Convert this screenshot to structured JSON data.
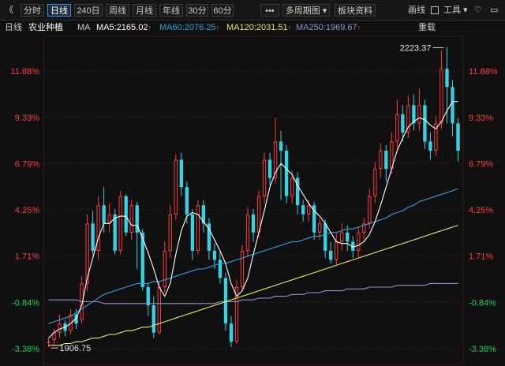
{
  "toolbar": {
    "back_glyph": "《",
    "periods": [
      "分时",
      "日线",
      "240日",
      "周线",
      "月线",
      "年线",
      "30分",
      "60分"
    ],
    "active_period": "日线",
    "more_glyph": "•••",
    "multi_period": "多周期图",
    "sector": "板块资料",
    "draw_line": "画线",
    "tools": "工具",
    "heart_icon": "heart-icon",
    "window_icon": "window-icon"
  },
  "legend": {
    "period": "日线",
    "name": "农业种植",
    "ma_label": "MA",
    "ma5": "MA5:2165.02",
    "ma60": "MA60:2076.25",
    "ma120": "MA120:2031.51",
    "ma250": "MA250:1969.67",
    "reset": "重载",
    "colors": {
      "ma5": "#ffffff",
      "ma60": "#2fa2e0",
      "ma120": "#e8e86a",
      "ma250": "#8c94c8"
    }
  },
  "chart_data": {
    "type": "candlestick",
    "y_ticks": [
      "11.88%",
      "9.33%",
      "6.79%",
      "4.25%",
      "1.71%",
      "-0.84%",
      "-3.38%"
    ],
    "ylim": [
      -3.38,
      11.88
    ],
    "annotations": [
      {
        "text": "2223.37",
        "kind": "high"
      },
      {
        "text": "1906.75",
        "kind": "low"
      }
    ],
    "candles": [
      [
        -3.0,
        -3.0,
        -3.3,
        -2.8
      ],
      [
        -2.9,
        -2.5,
        -3.2,
        -2.3
      ],
      [
        -2.5,
        -2.0,
        -2.8,
        -1.5
      ],
      [
        -2.0,
        -2.4,
        -2.7,
        -1.8
      ],
      [
        -2.4,
        -1.5,
        -2.6,
        -1.2
      ],
      [
        -1.5,
        -2.0,
        -2.3,
        -1.2
      ],
      [
        -1.8,
        0.2,
        -2.0,
        0.6
      ],
      [
        0.2,
        3.5,
        -0.2,
        4.0
      ],
      [
        3.5,
        2.0,
        1.8,
        4.2
      ],
      [
        2.0,
        4.5,
        1.5,
        5.0
      ],
      [
        4.5,
        3.5,
        3.0,
        5.5
      ],
      [
        3.5,
        4.0,
        3.0,
        4.6
      ],
      [
        4.0,
        2.0,
        1.8,
        4.3
      ],
      [
        2.0,
        5.0,
        1.8,
        5.3
      ],
      [
        5.0,
        3.0,
        2.8,
        5.1
      ],
      [
        3.0,
        4.5,
        2.6,
        4.8
      ],
      [
        4.5,
        3.0,
        1.0,
        4.7
      ],
      [
        3.0,
        0.0,
        -0.2,
        3.2
      ],
      [
        0.0,
        -1.0,
        -1.6,
        0.2
      ],
      [
        -1.0,
        -2.5,
        -2.8,
        -0.5
      ],
      [
        -2.5,
        0.0,
        -2.6,
        0.3
      ],
      [
        0.0,
        2.0,
        -0.3,
        2.5
      ],
      [
        2.0,
        4.0,
        1.6,
        4.5
      ],
      [
        4.0,
        7.0,
        3.7,
        7.3
      ],
      [
        7.0,
        5.5,
        5.0,
        7.4
      ],
      [
        5.5,
        4.0,
        3.5,
        5.8
      ],
      [
        4.0,
        2.0,
        1.5,
        4.3
      ],
      [
        2.0,
        4.5,
        1.8,
        4.8
      ],
      [
        4.5,
        3.5,
        3.0,
        4.8
      ],
      [
        3.5,
        2.0,
        1.5,
        3.8
      ],
      [
        2.0,
        1.5,
        1.0,
        2.4
      ],
      [
        1.5,
        0.5,
        0.2,
        2.0
      ],
      [
        0.5,
        -2.0,
        -2.4,
        0.8
      ],
      [
        -2.0,
        -3.0,
        -3.3,
        -1.6
      ],
      [
        -3.0,
        0.0,
        -3.1,
        0.4
      ],
      [
        0.0,
        2.0,
        -0.2,
        2.3
      ],
      [
        2.0,
        4.0,
        1.7,
        4.4
      ],
      [
        4.0,
        3.0,
        2.5,
        4.3
      ],
      [
        3.0,
        5.0,
        2.7,
        5.3
      ],
      [
        5.0,
        7.0,
        4.6,
        7.4
      ],
      [
        7.0,
        6.0,
        5.6,
        7.4
      ],
      [
        6.0,
        8.0,
        5.7,
        9.3
      ],
      [
        8.0,
        7.5,
        4.8,
        8.6
      ],
      [
        7.5,
        5.0,
        4.6,
        7.8
      ],
      [
        5.0,
        6.0,
        4.6,
        6.4
      ],
      [
        6.0,
        4.5,
        4.0,
        6.3
      ],
      [
        4.5,
        4.0,
        3.6,
        4.8
      ],
      [
        4.0,
        4.5,
        3.6,
        4.8
      ],
      [
        4.5,
        3.0,
        2.6,
        4.7
      ],
      [
        3.0,
        3.5,
        2.6,
        3.8
      ],
      [
        3.5,
        2.0,
        1.6,
        3.7
      ],
      [
        2.0,
        1.5,
        1.3,
        2.5
      ],
      [
        1.5,
        2.5,
        1.2,
        3.0
      ],
      [
        2.5,
        3.0,
        2.0,
        3.5
      ],
      [
        3.0,
        2.5,
        2.0,
        3.4
      ],
      [
        2.5,
        2.0,
        1.6,
        2.8
      ],
      [
        2.0,
        3.0,
        1.6,
        3.3
      ],
      [
        3.0,
        3.5,
        2.5,
        3.8
      ],
      [
        3.5,
        5.0,
        3.2,
        5.4
      ],
      [
        5.0,
        6.5,
        4.6,
        6.9
      ],
      [
        6.5,
        7.5,
        6.0,
        7.9
      ],
      [
        7.5,
        6.5,
        5.8,
        7.8
      ],
      [
        6.5,
        8.0,
        6.2,
        8.5
      ],
      [
        8.0,
        9.5,
        7.6,
        10.3
      ],
      [
        9.5,
        8.5,
        8.0,
        10.0
      ],
      [
        8.5,
        10.0,
        8.2,
        10.5
      ],
      [
        10.0,
        9.0,
        8.6,
        10.6
      ],
      [
        9.0,
        10.0,
        8.6,
        10.9
      ],
      [
        10.0,
        8.0,
        7.6,
        10.3
      ],
      [
        8.0,
        7.5,
        7.0,
        8.5
      ],
      [
        7.5,
        9.0,
        7.2,
        9.4
      ],
      [
        9.0,
        12.0,
        8.7,
        13.0
      ],
      [
        12.0,
        11.0,
        9.0,
        13.2
      ],
      [
        11.0,
        9.0,
        8.3,
        11.4
      ],
      [
        9.0,
        7.5,
        6.9,
        9.3
      ]
    ],
    "ma5": [
      -2.8,
      -2.5,
      -2.3,
      -2.2,
      -2.0,
      -1.7,
      -1.0,
      0.5,
      1.6,
      2.7,
      3.5,
      3.5,
      3.8,
      3.9,
      3.9,
      3.4,
      3.4,
      2.7,
      1.9,
      1.0,
      0.0,
      -0.5,
      0.2,
      1.8,
      3.1,
      3.9,
      4.1,
      4.0,
      3.6,
      3.2,
      2.6,
      2.0,
      1.3,
      0.2,
      -0.5,
      -0.2,
      0.5,
      1.8,
      3.0,
      4.2,
      5.5,
      6.3,
      6.8,
      6.5,
      6.2,
      5.6,
      5.1,
      4.6,
      4.2,
      3.9,
      3.5,
      3.0,
      2.5,
      2.4,
      2.4,
      2.2,
      2.3,
      2.5,
      2.9,
      3.6,
      4.5,
      5.5,
      6.5,
      7.5,
      8.2,
      8.8,
      9.1,
      9.3,
      9.2,
      8.9,
      8.7,
      9.1,
      9.7,
      10.2,
      10.2
    ],
    "ma60": [
      -2.0,
      -1.9,
      -1.8,
      -1.7,
      -1.6,
      -1.4,
      -1.2,
      -1.0,
      -0.8,
      -0.6,
      -0.4,
      -0.3,
      -0.2,
      -0.1,
      0.0,
      0.1,
      0.2,
      0.2,
      0.2,
      0.3,
      0.3,
      0.4,
      0.5,
      0.6,
      0.7,
      0.8,
      0.9,
      1.0,
      1.0,
      1.1,
      1.2,
      1.3,
      1.3,
      1.4,
      1.5,
      1.6,
      1.7,
      1.8,
      1.9,
      2.0,
      2.1,
      2.2,
      2.3,
      2.4,
      2.5,
      2.5,
      2.6,
      2.7,
      2.8,
      2.8,
      2.9,
      3.0,
      3.0,
      3.1,
      3.2,
      3.2,
      3.3,
      3.4,
      3.5,
      3.6,
      3.7,
      3.8,
      4.0,
      4.1,
      4.2,
      4.4,
      4.5,
      4.7,
      4.8,
      4.9,
      5.0,
      5.1,
      5.2,
      5.3,
      5.4
    ],
    "ma120": [
      -3.2,
      -3.2,
      -3.2,
      -3.1,
      -3.1,
      -3.0,
      -3.0,
      -2.9,
      -2.8,
      -2.8,
      -2.7,
      -2.6,
      -2.6,
      -2.5,
      -2.4,
      -2.4,
      -2.3,
      -2.2,
      -2.2,
      -2.1,
      -2.0,
      -1.9,
      -1.8,
      -1.7,
      -1.6,
      -1.5,
      -1.4,
      -1.3,
      -1.2,
      -1.1,
      -1.0,
      -0.9,
      -0.8,
      -0.7,
      -0.6,
      -0.5,
      -0.4,
      -0.3,
      -0.2,
      -0.1,
      0.0,
      0.1,
      0.2,
      0.3,
      0.4,
      0.5,
      0.6,
      0.7,
      0.8,
      0.9,
      1.0,
      1.1,
      1.2,
      1.3,
      1.4,
      1.5,
      1.6,
      1.7,
      1.8,
      1.9,
      2.0,
      2.1,
      2.2,
      2.3,
      2.4,
      2.5,
      2.6,
      2.7,
      2.8,
      2.9,
      3.0,
      3.1,
      3.2,
      3.3,
      3.4
    ],
    "ma250": [
      -0.7,
      -0.7,
      -0.7,
      -0.7,
      -0.7,
      -0.7,
      -0.8,
      -0.8,
      -0.8,
      -0.8,
      -0.9,
      -0.9,
      -0.9,
      -0.9,
      -0.9,
      -0.9,
      -0.9,
      -0.9,
      -0.9,
      -0.9,
      -0.9,
      -0.9,
      -0.9,
      -0.9,
      -0.9,
      -0.9,
      -0.9,
      -0.9,
      -0.9,
      -0.9,
      -0.9,
      -0.8,
      -0.8,
      -0.8,
      -0.8,
      -0.7,
      -0.7,
      -0.7,
      -0.6,
      -0.6,
      -0.6,
      -0.5,
      -0.5,
      -0.5,
      -0.4,
      -0.4,
      -0.4,
      -0.3,
      -0.3,
      -0.3,
      -0.2,
      -0.2,
      -0.2,
      -0.2,
      -0.1,
      -0.1,
      -0.1,
      -0.1,
      0.0,
      0.0,
      0.0,
      0.0,
      0.0,
      0.1,
      0.1,
      0.1,
      0.1,
      0.1,
      0.1,
      0.2,
      0.2,
      0.2,
      0.2,
      0.2,
      0.2
    ]
  }
}
